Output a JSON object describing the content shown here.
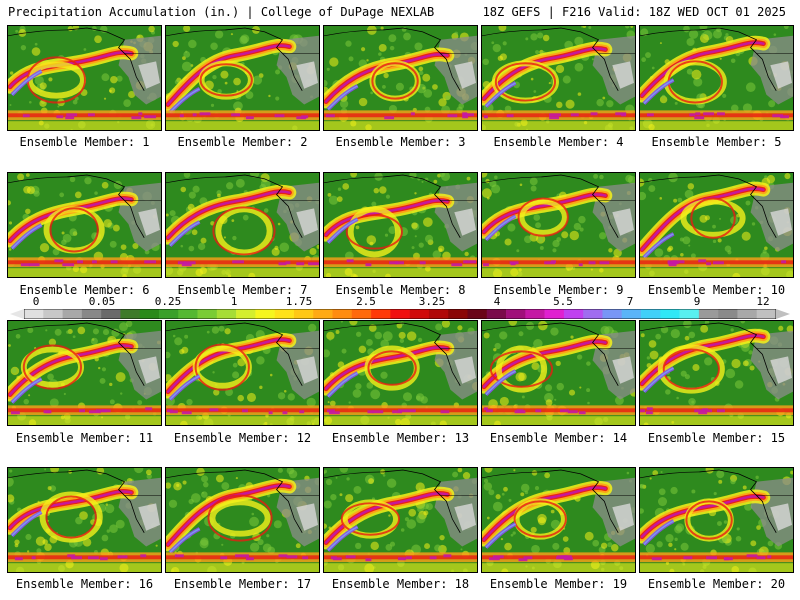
{
  "header": {
    "left": "Precipitation Accumulation (in.) | College of DuPage NEXLAB",
    "right": "18Z GEFS | F216 Valid: 18Z WED OCT 01 2025"
  },
  "colorbar": {
    "labels": [
      "0",
      "0.05",
      "0.25",
      "1",
      "1.75",
      "2.5",
      "3.25",
      "4",
      "5.5",
      "7",
      "9",
      "12"
    ],
    "colors": [
      "#e0e0e0",
      "#c8c8c8",
      "#a8a8a8",
      "#888888",
      "#6a6a6a",
      "#3e7a2a",
      "#2a8a1a",
      "#3aa02a",
      "#55b832",
      "#7acc35",
      "#a6dd36",
      "#d4ee2e",
      "#f6f61e",
      "#ffe21a",
      "#ffc816",
      "#ffaa14",
      "#ff8c10",
      "#ff6a0c",
      "#ff3a08",
      "#f01010",
      "#d00a0a",
      "#b00808",
      "#8a0606",
      "#6a0418",
      "#7a0a4a",
      "#a0107a",
      "#c418a4",
      "#e020d0",
      "#c040f0",
      "#a06cf0",
      "#7896f6",
      "#5ab4f8",
      "#40d0f8",
      "#30e8f6",
      "#58f0f0",
      "#9a9a9a",
      "#8a8a8a",
      "#a8a8a8",
      "#c0c0c0"
    ]
  },
  "members": [
    {
      "caption": "Ensemble Member: 1"
    },
    {
      "caption": "Ensemble Member: 2"
    },
    {
      "caption": "Ensemble Member: 3"
    },
    {
      "caption": "Ensemble Member: 4"
    },
    {
      "caption": "Ensemble Member: 5"
    },
    {
      "caption": "Ensemble Member: 6"
    },
    {
      "caption": "Ensemble Member: 7"
    },
    {
      "caption": "Ensemble Member: 8"
    },
    {
      "caption": "Ensemble Member: 9"
    },
    {
      "caption": "Ensemble Member: 10"
    },
    {
      "caption": "Ensemble Member: 11"
    },
    {
      "caption": "Ensemble Member: 12"
    },
    {
      "caption": "Ensemble Member: 13"
    },
    {
      "caption": "Ensemble Member: 14"
    },
    {
      "caption": "Ensemble Member: 15"
    },
    {
      "caption": "Ensemble Member: 16"
    },
    {
      "caption": "Ensemble Member: 17"
    },
    {
      "caption": "Ensemble Member: 18"
    },
    {
      "caption": "Ensemble Member: 19"
    },
    {
      "caption": "Ensemble Member: 20"
    }
  ],
  "palette": {
    "background": "#2e8a1e",
    "light_green": "#7cc83a",
    "yellow": "#f4f01a",
    "orange": "#ffa018",
    "red": "#e81c12",
    "dark_red": "#8a0606",
    "magenta": "#c418a4",
    "purple": "#8a4ce8",
    "blue": "#78a0f6",
    "gray_land": "#8c8c8c",
    "light_gray": "#d8d8d8"
  }
}
